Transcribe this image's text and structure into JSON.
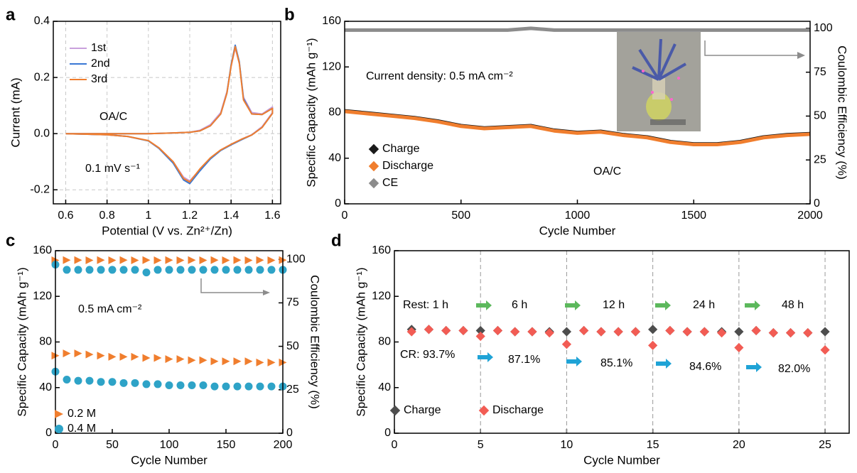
{
  "chart_data": [
    {
      "type": "line",
      "label": "a",
      "xlabel": "Potential (V vs. Zn²⁺/Zn)",
      "ylabel": "Current (mA)",
      "xlim": [
        0.54,
        1.64
      ],
      "xticks": [
        0.6,
        0.8,
        1.0,
        1.2,
        1.4,
        1.6
      ],
      "ylim": [
        -0.25,
        0.4
      ],
      "yticks": [
        -0.2,
        {
          "value": 0,
          "label": "0.0"
        },
        0.2,
        0.4
      ],
      "grid": true,
      "x": [
        0.6,
        0.8,
        1.0,
        1.1,
        1.2,
        1.25,
        1.3,
        1.35,
        1.38,
        1.4,
        1.42,
        1.44,
        1.46,
        1.5,
        1.55,
        1.6,
        1.6,
        1.55,
        1.5,
        1.45,
        1.4,
        1.35,
        1.3,
        1.25,
        1.2,
        1.17,
        1.12,
        1.05,
        1.0,
        0.9,
        0.8,
        0.6
      ],
      "series": [
        {
          "name": "1st",
          "color": "#c9a0dc",
          "values": [
            0,
            0,
            0,
            0.002,
            0.005,
            0.012,
            0.032,
            0.075,
            0.15,
            0.24,
            0.305,
            0.25,
            0.13,
            0.075,
            0.07,
            0.095,
            0.075,
            0.025,
            -0.004,
            -0.02,
            -0.038,
            -0.058,
            -0.088,
            -0.128,
            -0.168,
            -0.155,
            -0.1,
            -0.05,
            -0.025,
            -0.01,
            -0.004,
            0
          ]
        },
        {
          "name": "2nd",
          "color": "#3a78d4",
          "values": [
            0,
            0,
            0,
            0.002,
            0.005,
            0.01,
            0.028,
            0.07,
            0.145,
            0.245,
            0.315,
            0.255,
            0.125,
            0.07,
            0.068,
            0.09,
            0.072,
            0.022,
            -0.005,
            -0.022,
            -0.04,
            -0.06,
            -0.09,
            -0.132,
            -0.178,
            -0.165,
            -0.105,
            -0.052,
            -0.026,
            -0.01,
            -0.004,
            0
          ]
        },
        {
          "name": "3rd",
          "color": "#f07e2e",
          "values": [
            0,
            0,
            0,
            0.002,
            0.005,
            0.01,
            0.028,
            0.07,
            0.145,
            0.24,
            0.31,
            0.25,
            0.12,
            0.07,
            0.068,
            0.09,
            0.072,
            0.022,
            -0.005,
            -0.02,
            -0.038,
            -0.058,
            -0.086,
            -0.125,
            -0.172,
            -0.16,
            -0.1,
            -0.05,
            -0.025,
            -0.01,
            -0.004,
            0
          ]
        }
      ],
      "annotations": [
        "OA/C",
        "0.1 mV s⁻¹"
      ]
    },
    {
      "type": "line",
      "label": "b",
      "xlabel": "Cycle Number",
      "ylabel": "Specific Capacity (mAh g⁻¹)",
      "y2label": "Coulombic Efficiency (%)",
      "xlim": [
        0,
        2000
      ],
      "xticks": [
        0,
        500,
        1000,
        1500,
        2000
      ],
      "ylim": [
        0,
        160
      ],
      "yticks": [
        0,
        40,
        80,
        120,
        160
      ],
      "y2lim": [
        0,
        104
      ],
      "y2ticks": [
        0,
        25,
        50,
        75,
        100
      ],
      "x": [
        0,
        100,
        200,
        300,
        400,
        500,
        600,
        700,
        800,
        900,
        1000,
        1100,
        1200,
        1300,
        1400,
        1500,
        1600,
        1700,
        1800,
        1900,
        2000
      ],
      "series": [
        {
          "name": "Charge",
          "color": "#1a1a1a",
          "values": [
            81.5,
            79.5,
            77.5,
            75.5,
            72.5,
            68.5,
            66.5,
            67.5,
            68.5,
            64.5,
            62.5,
            63.5,
            60.5,
            58.5,
            54.5,
            52.5,
            52.5,
            54.5,
            58.5,
            60.5,
            61.5
          ]
        },
        {
          "name": "Discharge",
          "color": "#f07e2e",
          "values": [
            81,
            79,
            77,
            75,
            72,
            68,
            66,
            67,
            68,
            64,
            62,
            63,
            60,
            58,
            54,
            52,
            52,
            54,
            58,
            60,
            61
          ]
        },
        {
          "name": "CE",
          "color": "#8c8c8c",
          "axis": "y2",
          "values": [
            99,
            99,
            99,
            99,
            99,
            99,
            99,
            99,
            100,
            99,
            99,
            99,
            99,
            99,
            99,
            99,
            99,
            99,
            99,
            99,
            99
          ]
        }
      ],
      "annotations": [
        "Current density: 0.5 mA cm⁻²",
        "OA/C"
      ]
    },
    {
      "type": "scatter",
      "label": "c",
      "xlabel": "Cycle Number",
      "ylabel": "Specific Capacity (mAh g⁻¹)",
      "y2label": "Coulombic Efficiency (%)",
      "xlim": [
        0,
        200
      ],
      "xticks": [
        0,
        50,
        100,
        150,
        200
      ],
      "ylim": [
        0,
        160
      ],
      "yticks": [
        0,
        40,
        80,
        120,
        160
      ],
      "y2lim": [
        0,
        105
      ],
      "y2ticks": [
        0,
        25,
        50,
        75,
        100
      ],
      "x": [
        0,
        10,
        20,
        30,
        40,
        50,
        60,
        70,
        80,
        90,
        100,
        110,
        120,
        130,
        140,
        150,
        160,
        170,
        180,
        190,
        200
      ],
      "series": [
        {
          "name": "0.2 M",
          "color": "#f07e2e",
          "marker": "triangle",
          "values": [
            68,
            70,
            70,
            69,
            68,
            67,
            67,
            67,
            66,
            66,
            65,
            65,
            64,
            64,
            63,
            63,
            63,
            63,
            62,
            62,
            62
          ]
        },
        {
          "name": "0.4 M",
          "color": "#2ea3c7",
          "marker": "circle",
          "values": [
            54,
            47,
            46,
            46,
            45,
            45,
            44,
            44,
            43,
            43,
            42,
            42,
            42,
            42,
            41,
            41,
            41,
            41,
            41,
            41,
            41
          ]
        },
        {
          "color": "#f07e2e",
          "marker": "triangle",
          "axis": "y2",
          "values": [
            99.5,
            99.6,
            99.6,
            99.5,
            99.6,
            99.5,
            99.6,
            99.5,
            99.6,
            99.5,
            99.6,
            99.5,
            99.6,
            99.5,
            99.6,
            99.5,
            99.6,
            99.5,
            99.6,
            99.5,
            99.6
          ]
        },
        {
          "color": "#2ea3c7",
          "marker": "circle",
          "axis": "y2",
          "values": [
            97,
            94,
            94,
            94,
            94,
            94,
            94,
            94,
            92.5,
            94,
            94,
            94,
            94,
            94,
            94,
            94,
            94,
            94,
            94,
            94,
            94
          ]
        }
      ],
      "annotations": [
        "0.5 mA cm⁻²"
      ]
    },
    {
      "type": "scatter",
      "label": "d",
      "xlabel": "Cycle Number",
      "ylabel": "Specific Capacity (mAh g⁻¹)",
      "xlim": [
        0,
        26.4
      ],
      "xticks": [
        0,
        5,
        10,
        15,
        20,
        25
      ],
      "ylim": [
        0,
        160
      ],
      "yticks": [
        0,
        40,
        80,
        120,
        160
      ],
      "vlines": [
        5,
        10,
        15,
        20,
        25
      ],
      "x": [
        1,
        2,
        3,
        4,
        5,
        6,
        7,
        8,
        9,
        10,
        11,
        12,
        13,
        14,
        15,
        16,
        17,
        18,
        19,
        20,
        21,
        22,
        23,
        24,
        25
      ],
      "series": [
        {
          "name": "Charge",
          "color": "#4d4d4d",
          "marker": "diamond",
          "values": [
            91,
            91,
            90,
            90,
            90,
            90,
            89,
            89,
            89,
            89,
            90,
            89,
            89,
            89,
            91,
            90,
            89,
            89,
            89,
            89,
            90,
            88,
            88,
            88,
            89
          ]
        },
        {
          "name": "Discharge",
          "color": "#f25c54",
          "marker": "diamond",
          "values": [
            89,
            91,
            90,
            90,
            85,
            90,
            89,
            89,
            88,
            78,
            90,
            89,
            89,
            89,
            77,
            90,
            89,
            89,
            88,
            75,
            90,
            88,
            88,
            88,
            73
          ]
        }
      ],
      "annotations": [
        "Rest: 1 h",
        "6 h",
        "12 h",
        "24 h",
        "48 h",
        "CR: 93.7%",
        "87.1%",
        "85.1%",
        "84.6%",
        "82.0%"
      ]
    }
  ]
}
